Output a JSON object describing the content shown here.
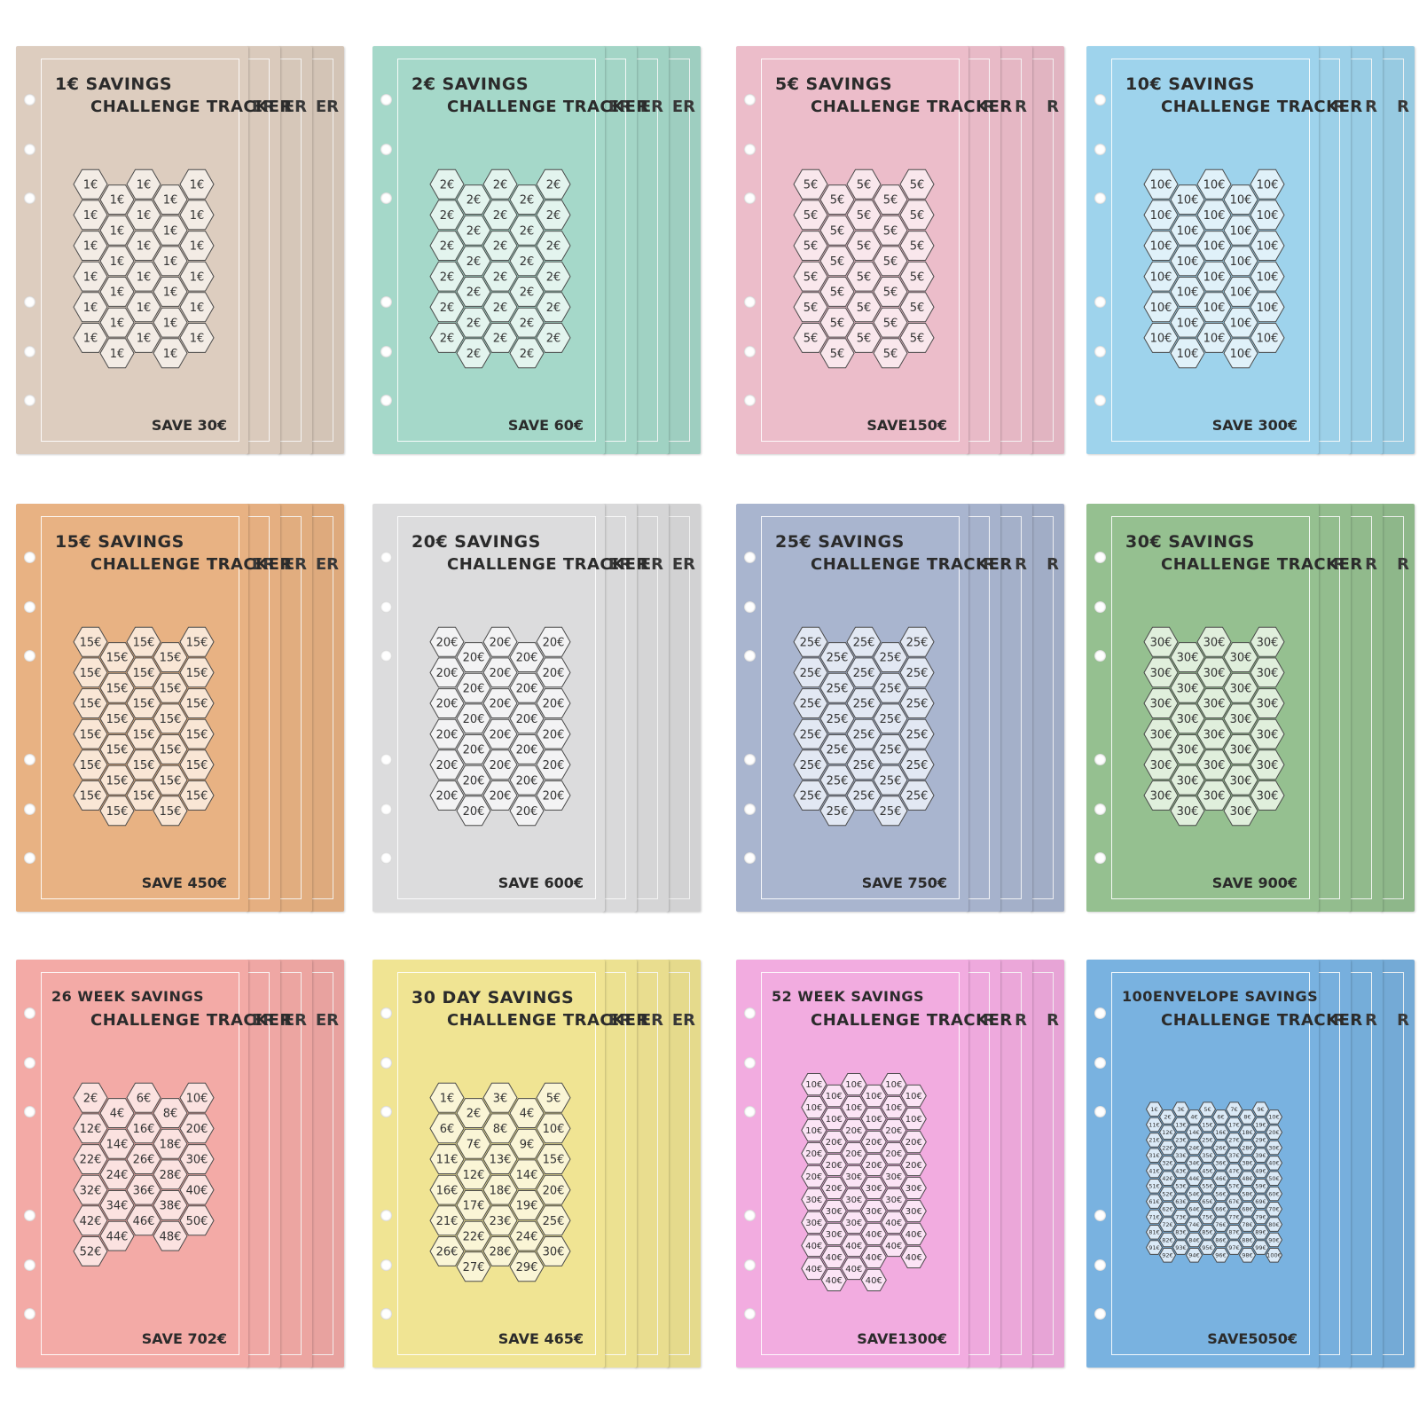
{
  "trackers": [
    {
      "line1": "1€ SAVINGS",
      "line2": "CHALLENGE TRACKER",
      "save": "SAVE 30€",
      "peek": "ER",
      "color": "#ddcdbf",
      "tint": "#f3ece5",
      "cells": [
        "1€",
        "1€",
        "1€",
        "1€",
        "1€",
        "1€",
        "1€",
        "1€",
        "1€",
        "1€",
        "1€",
        "1€",
        "1€",
        "1€",
        "1€",
        "1€",
        "1€",
        "1€",
        "1€",
        "1€",
        "1€",
        "1€",
        "1€",
        "1€",
        "1€",
        "1€",
        "1€",
        "1€",
        "1€",
        "1€"
      ]
    },
    {
      "line1": "2€ SAVINGS",
      "line2": "CHALLENGE TRACKER",
      "save": "SAVE 60€",
      "peek": "ER",
      "color": "#a5d8c9",
      "tint": "#e3f4ee",
      "cells": [
        "2€",
        "2€",
        "2€",
        "2€",
        "2€",
        "2€",
        "2€",
        "2€",
        "2€",
        "2€",
        "2€",
        "2€",
        "2€",
        "2€",
        "2€",
        "2€",
        "2€",
        "2€",
        "2€",
        "2€",
        "2€",
        "2€",
        "2€",
        "2€",
        "2€",
        "2€",
        "2€",
        "2€",
        "2€",
        "2€"
      ]
    },
    {
      "line1": "5€ SAVINGS",
      "line2": "CHALLENGE TRACKER",
      "save": "SAVE150€",
      "peek": "R",
      "color": "#ecbdca",
      "tint": "#f9e7ec",
      "cells": [
        "5€",
        "5€",
        "5€",
        "5€",
        "5€",
        "5€",
        "5€",
        "5€",
        "5€",
        "5€",
        "5€",
        "5€",
        "5€",
        "5€",
        "5€",
        "5€",
        "5€",
        "5€",
        "5€",
        "5€",
        "5€",
        "5€",
        "5€",
        "5€",
        "5€",
        "5€",
        "5€",
        "5€",
        "5€",
        "5€"
      ]
    },
    {
      "line1": "10€ SAVINGS",
      "line2": "CHALLENGE TRACKER",
      "save": "SAVE 300€",
      "peek": "R",
      "color": "#9ed3ec",
      "tint": "#e0f1f9",
      "cells": [
        "10€",
        "10€",
        "10€",
        "10€",
        "10€",
        "10€",
        "10€",
        "10€",
        "10€",
        "10€",
        "10€",
        "10€",
        "10€",
        "10€",
        "10€",
        "10€",
        "10€",
        "10€",
        "10€",
        "10€",
        "10€",
        "10€",
        "10€",
        "10€",
        "10€",
        "10€",
        "10€",
        "10€",
        "10€",
        "10€"
      ]
    },
    {
      "line1": "15€ SAVINGS",
      "line2": "CHALLENGE TRACKER",
      "save": "SAVE 450€",
      "peek": "ER",
      "color": "#e8b283",
      "tint": "#f9e6d5",
      "cells": [
        "15€",
        "15€",
        "15€",
        "15€",
        "15€",
        "15€",
        "15€",
        "15€",
        "15€",
        "15€",
        "15€",
        "15€",
        "15€",
        "15€",
        "15€",
        "15€",
        "15€",
        "15€",
        "15€",
        "15€",
        "15€",
        "15€",
        "15€",
        "15€",
        "15€",
        "15€",
        "15€",
        "15€",
        "15€",
        "15€"
      ]
    },
    {
      "line1": "20€ SAVINGS",
      "line2": "CHALLENGE TRACKER",
      "save": "SAVE 600€",
      "peek": "ER",
      "color": "#dcdcdd",
      "tint": "#f3f3f4",
      "cells": [
        "20€",
        "20€",
        "20€",
        "20€",
        "20€",
        "20€",
        "20€",
        "20€",
        "20€",
        "20€",
        "20€",
        "20€",
        "20€",
        "20€",
        "20€",
        "20€",
        "20€",
        "20€",
        "20€",
        "20€",
        "20€",
        "20€",
        "20€",
        "20€",
        "20€",
        "20€",
        "20€",
        "20€",
        "20€",
        "20€"
      ]
    },
    {
      "line1": "25€ SAVINGS",
      "line2": "CHALLENGE TRACKER",
      "save": "SAVE 750€",
      "peek": "R",
      "color": "#a9b5cf",
      "tint": "#e2e8f3",
      "cells": [
        "25€",
        "25€",
        "25€",
        "25€",
        "25€",
        "25€",
        "25€",
        "25€",
        "25€",
        "25€",
        "25€",
        "25€",
        "25€",
        "25€",
        "25€",
        "25€",
        "25€",
        "25€",
        "25€",
        "25€",
        "25€",
        "25€",
        "25€",
        "25€",
        "25€",
        "25€",
        "25€",
        "25€",
        "25€",
        "25€"
      ]
    },
    {
      "line1": "30€ SAVINGS",
      "line2": "CHALLENGE TRACKER",
      "save": "SAVE 900€",
      "peek": "R",
      "color": "#95c090",
      "tint": "#e0efdc",
      "cells": [
        "30€",
        "30€",
        "30€",
        "30€",
        "30€",
        "30€",
        "30€",
        "30€",
        "30€",
        "30€",
        "30€",
        "30€",
        "30€",
        "30€",
        "30€",
        "30€",
        "30€",
        "30€",
        "30€",
        "30€",
        "30€",
        "30€",
        "30€",
        "30€",
        "30€",
        "30€",
        "30€",
        "30€",
        "30€",
        "30€"
      ]
    },
    {
      "line1": "26 WEEK SAVINGS",
      "line2": "CHALLENGE TRACKER",
      "save": "SAVE 702€",
      "peek": "ER",
      "color": "#f3aaa6",
      "tint": "#fbe2e0",
      "cells": [
        "2€",
        "4€",
        "6€",
        "8€",
        "10€",
        "12€",
        "14€",
        "16€",
        "18€",
        "20€",
        "22€",
        "24€",
        "26€",
        "28€",
        "30€",
        "32€",
        "34€",
        "36€",
        "38€",
        "40€",
        "42€",
        "44€",
        "46€",
        "48€",
        "50€",
        "52€"
      ]
    },
    {
      "line1": "30 DAY SAVINGS",
      "line2": "CHALLENGE TRACKER",
      "save": "SAVE 465€",
      "peek": "ER",
      "color": "#f0e493",
      "tint": "#faf5d6",
      "cells": [
        "1€",
        "2€",
        "3€",
        "4€",
        "5€",
        "6€",
        "7€",
        "8€",
        "9€",
        "10€",
        "11€",
        "12€",
        "13€",
        "14€",
        "15€",
        "16€",
        "17€",
        "18€",
        "19€",
        "20€",
        "21€",
        "22€",
        "23€",
        "24€",
        "25€",
        "26€",
        "27€",
        "28€",
        "29€",
        "30€"
      ]
    },
    {
      "line1": "52 WEEK SAVINGS",
      "line2": "CHALLENGE TRACKER",
      "save": "SAVE1300€",
      "peek": "R",
      "color": "#f2ace0",
      "tint": "#fbe4f5",
      "cells": [
        "10€",
        "10€",
        "10€",
        "10€",
        "10€",
        "10€",
        "10€",
        "10€",
        "10€",
        "10€",
        "10€",
        "10€",
        "10€",
        "20€",
        "20€",
        "20€",
        "20€",
        "20€",
        "20€",
        "20€",
        "20€",
        "20€",
        "20€",
        "20€",
        "20€",
        "20€",
        "30€",
        "30€",
        "30€",
        "30€",
        "30€",
        "30€",
        "30€",
        "30€",
        "30€",
        "30€",
        "30€",
        "30€",
        "30€",
        "40€",
        "40€",
        "40€",
        "40€",
        "40€",
        "40€",
        "40€",
        "40€",
        "40€",
        "40€",
        "40€",
        "40€",
        "40€"
      ]
    },
    {
      "line1": "100ENVELOPE SAVINGS",
      "line2": "CHALLENGE TRACKER",
      "save": "SAVE5050€",
      "peek": "R",
      "color": "#79b2e0",
      "tint": "#dbeaf7",
      "cells": [
        "1€",
        "2€",
        "3€",
        "4€",
        "5€",
        "6€",
        "7€",
        "8€",
        "9€",
        "10€",
        "11€",
        "12€",
        "13€",
        "14€",
        "15€",
        "16€",
        "17€",
        "18€",
        "19€",
        "20€",
        "21€",
        "22€",
        "23€",
        "24€",
        "25€",
        "26€",
        "27€",
        "28€",
        "29€",
        "30€",
        "31€",
        "32€",
        "33€",
        "34€",
        "35€",
        "36€",
        "37€",
        "38€",
        "39€",
        "40€",
        "41€",
        "42€",
        "43€",
        "44€",
        "45€",
        "46€",
        "47€",
        "48€",
        "49€",
        "50€",
        "51€",
        "52€",
        "53€",
        "54€",
        "55€",
        "56€",
        "57€",
        "58€",
        "59€",
        "60€",
        "61€",
        "62€",
        "63€",
        "64€",
        "65€",
        "66€",
        "67€",
        "68€",
        "69€",
        "70€",
        "71€",
        "72€",
        "73€",
        "74€",
        "75€",
        "76€",
        "77€",
        "78€",
        "79€",
        "80€",
        "81€",
        "82€",
        "83€",
        "84€",
        "85€",
        "86€",
        "87€",
        "88€",
        "89€",
        "90€",
        "91€",
        "92€",
        "93€",
        "94€",
        "95€",
        "96€",
        "97€",
        "98€",
        "99€",
        "100€"
      ]
    }
  ]
}
